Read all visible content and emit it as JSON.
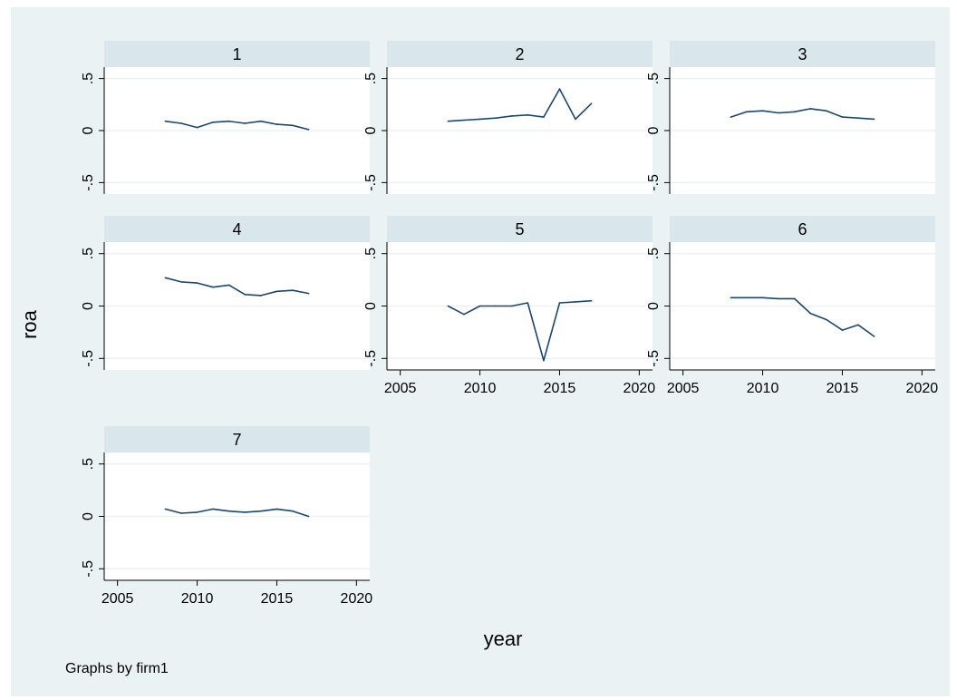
{
  "chart_data": {
    "type": "line",
    "ylabel": "roa",
    "xlabel": "year",
    "note": "Graphs by firm1",
    "xlim": [
      2005,
      2020
    ],
    "ylim": [
      -0.5,
      0.5
    ],
    "xticks": [
      2005,
      2010,
      2015,
      2020
    ],
    "yticks": [
      0.5,
      0,
      -0.5
    ],
    "ytick_labels": [
      ".5",
      "0",
      "-.5"
    ],
    "grid": true,
    "x": [
      2008,
      2009,
      2010,
      2011,
      2012,
      2013,
      2014,
      2015,
      2016,
      2017
    ],
    "panels": [
      {
        "title": "1",
        "values": [
          0.09,
          0.07,
          0.03,
          0.08,
          0.09,
          0.07,
          0.09,
          0.06,
          0.05,
          0.01
        ]
      },
      {
        "title": "2",
        "values": [
          0.09,
          0.1,
          0.11,
          0.12,
          0.14,
          0.15,
          0.13,
          0.4,
          0.11,
          0.26
        ]
      },
      {
        "title": "3",
        "values": [
          0.13,
          0.18,
          0.19,
          0.17,
          0.18,
          0.21,
          0.19,
          0.13,
          0.12,
          0.11
        ]
      },
      {
        "title": "4",
        "values": [
          0.27,
          0.23,
          0.22,
          0.18,
          0.2,
          0.11,
          0.1,
          0.14,
          0.15,
          0.12
        ]
      },
      {
        "title": "5",
        "values": [
          0.0,
          -0.08,
          0.0,
          0.0,
          0.0,
          0.03,
          -0.52,
          0.03,
          0.04,
          0.05
        ]
      },
      {
        "title": "6",
        "values": [
          0.08,
          0.08,
          0.08,
          0.07,
          0.07,
          -0.07,
          -0.13,
          -0.23,
          -0.18,
          -0.29
        ]
      },
      {
        "title": "7",
        "values": [
          0.07,
          0.03,
          0.04,
          0.07,
          0.05,
          0.04,
          0.05,
          0.07,
          0.05,
          0.0
        ]
      }
    ],
    "colors": {
      "background": "#eaf2f3",
      "plot_background": "#ffffff",
      "strip": "#d9e6eb",
      "line": "#1a476f",
      "grid": "#eaf2f3"
    }
  }
}
